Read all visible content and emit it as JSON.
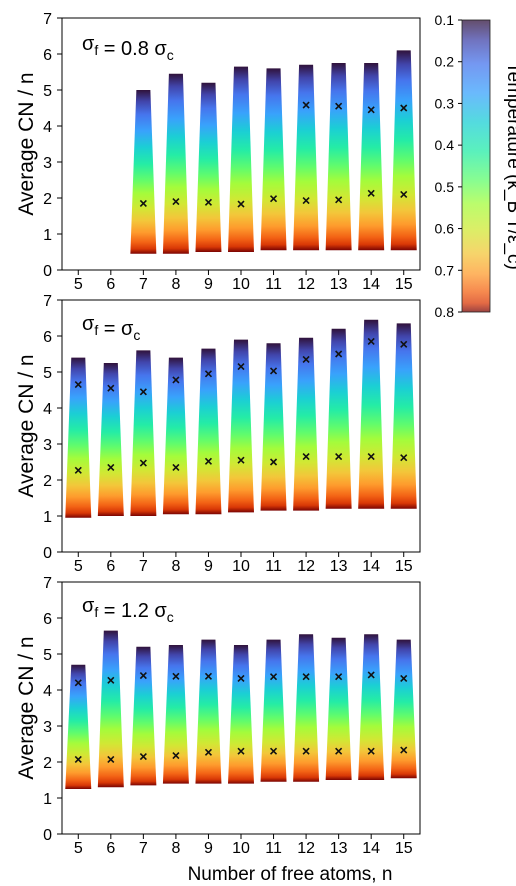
{
  "figure": {
    "y_axis_label": "Average CN / n",
    "x_axis_label": "Number of free atoms, n",
    "colorbar": {
      "label": "Temperature (k_B T/ε_c)",
      "ticks": [
        0.1,
        0.2,
        0.3,
        0.4,
        0.5,
        0.6,
        0.7,
        0.8
      ],
      "range": [
        0.1,
        0.8
      ],
      "colormap": "turbo",
      "orientation": "low temperature at top"
    }
  },
  "chart_data": [
    {
      "type": "bar",
      "panel_label": "σ_f = 0.8 σ_c",
      "xlabel": "",
      "ylabel": "Average CN / n",
      "ylim": [
        0,
        7
      ],
      "yticks": [
        0,
        1,
        2,
        3,
        4,
        5,
        6,
        7
      ],
      "categories": [
        "5",
        "6",
        "7",
        "8",
        "9",
        "10",
        "11",
        "12",
        "13",
        "14",
        "15"
      ],
      "top": [
        null,
        null,
        5.0,
        5.45,
        5.2,
        5.65,
        5.6,
        5.7,
        5.75,
        5.75,
        6.1
      ],
      "bottom": [
        null,
        null,
        0.45,
        0.45,
        0.5,
        0.5,
        0.55,
        0.55,
        0.55,
        0.55,
        0.55
      ],
      "marker_upper": [
        null,
        null,
        null,
        null,
        null,
        null,
        null,
        4.58,
        4.55,
        4.45,
        4.5
      ],
      "marker_lower": [
        null,
        null,
        1.85,
        1.9,
        1.88,
        1.83,
        1.98,
        1.93,
        1.95,
        2.13,
        2.1
      ]
    },
    {
      "type": "bar",
      "panel_label": "σ_f = σ_c",
      "xlabel": "",
      "ylabel": "Average CN / n",
      "ylim": [
        0,
        7
      ],
      "yticks": [
        0,
        1,
        2,
        3,
        4,
        5,
        6,
        7
      ],
      "categories": [
        "5",
        "6",
        "7",
        "8",
        "9",
        "10",
        "11",
        "12",
        "13",
        "14",
        "15"
      ],
      "top": [
        5.4,
        5.25,
        5.6,
        5.4,
        5.65,
        5.9,
        5.8,
        5.95,
        6.2,
        6.45,
        6.35
      ],
      "bottom": [
        0.95,
        1.0,
        1.0,
        1.05,
        1.05,
        1.1,
        1.15,
        1.15,
        1.2,
        1.2,
        1.2
      ],
      "marker_upper": [
        4.65,
        4.55,
        4.45,
        4.78,
        4.95,
        5.15,
        5.03,
        5.35,
        5.5,
        5.85,
        5.77
      ],
      "marker_lower": [
        2.27,
        2.35,
        2.47,
        2.35,
        2.52,
        2.55,
        2.5,
        2.65,
        2.65,
        2.65,
        2.62
      ]
    },
    {
      "type": "bar",
      "panel_label": "σ_f = 1.2 σ_c",
      "xlabel": "Number of free atoms, n",
      "ylabel": "Average CN / n",
      "ylim": [
        0,
        7
      ],
      "yticks": [
        0,
        1,
        2,
        3,
        4,
        5,
        6,
        7
      ],
      "categories": [
        "5",
        "6",
        "7",
        "8",
        "9",
        "10",
        "11",
        "12",
        "13",
        "14",
        "15"
      ],
      "top": [
        4.7,
        5.65,
        5.2,
        5.25,
        5.4,
        5.25,
        5.4,
        5.55,
        5.45,
        5.55,
        5.4
      ],
      "bottom": [
        1.25,
        1.3,
        1.35,
        1.4,
        1.4,
        1.4,
        1.45,
        1.45,
        1.5,
        1.5,
        1.55
      ],
      "marker_upper": [
        4.2,
        4.27,
        4.4,
        4.38,
        4.38,
        4.32,
        4.37,
        4.37,
        4.37,
        4.42,
        4.32
      ],
      "marker_lower": [
        2.07,
        2.07,
        2.15,
        2.18,
        2.27,
        2.3,
        2.3,
        2.3,
        2.3,
        2.3,
        2.33
      ]
    }
  ]
}
